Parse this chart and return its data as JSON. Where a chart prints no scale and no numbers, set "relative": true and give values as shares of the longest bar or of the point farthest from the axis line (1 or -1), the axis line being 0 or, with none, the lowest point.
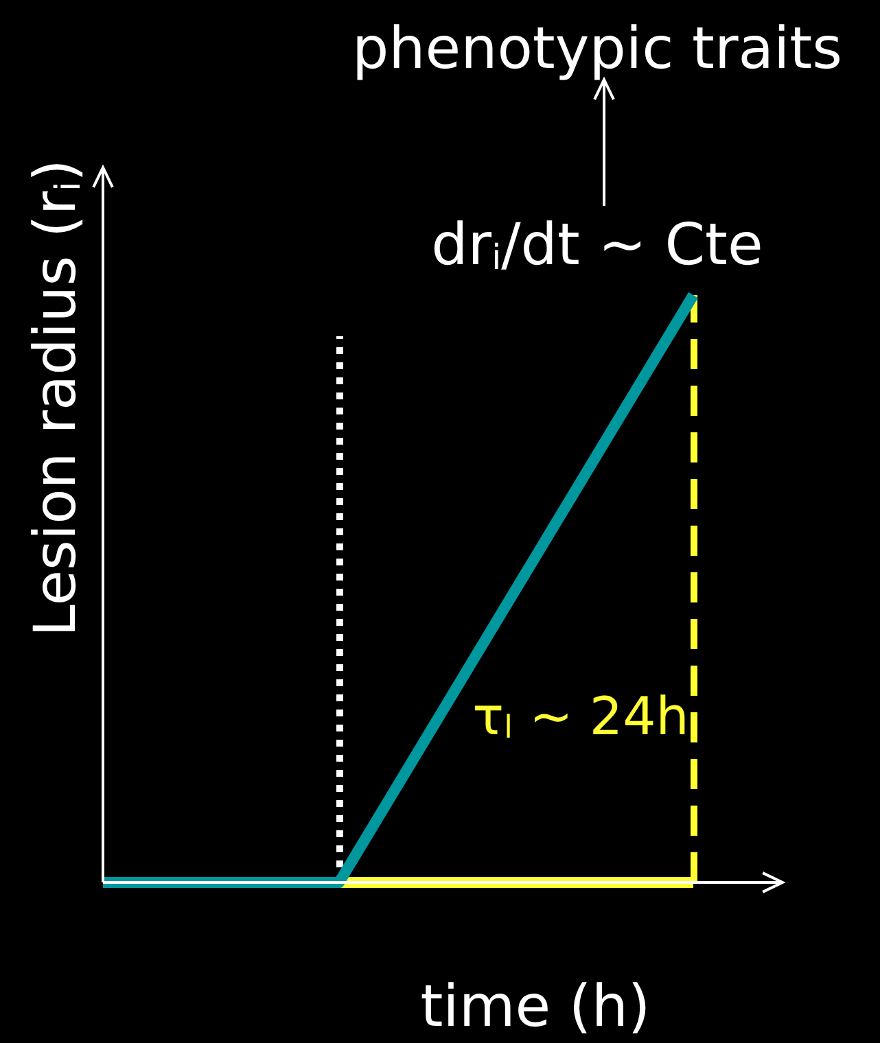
{
  "chart_data": {
    "type": "line",
    "relative": true,
    "xlabel": "time (h)",
    "ylabel": "Lesion radius (r$_{i}$)",
    "categories": [
      null,
      null,
      null,
      null,
      null,
      null
    ],
    "series": [
      {
        "color": "#ffff33",
        "values": [
          null,
          null,
          0,
          0,
          0,
          0
        ]
      },
      {
        "color": "#00979f",
        "values": [
          0,
          0,
          0,
          0.3333,
          0.6667,
          1
        ]
      }
    ],
    "annotations": [
      "phenotypic traits",
      "dr$_{i}$/dt ~ Cte",
      "τ$_{l}$ ~ 24h"
    ],
    "marker": "none"
  }
}
